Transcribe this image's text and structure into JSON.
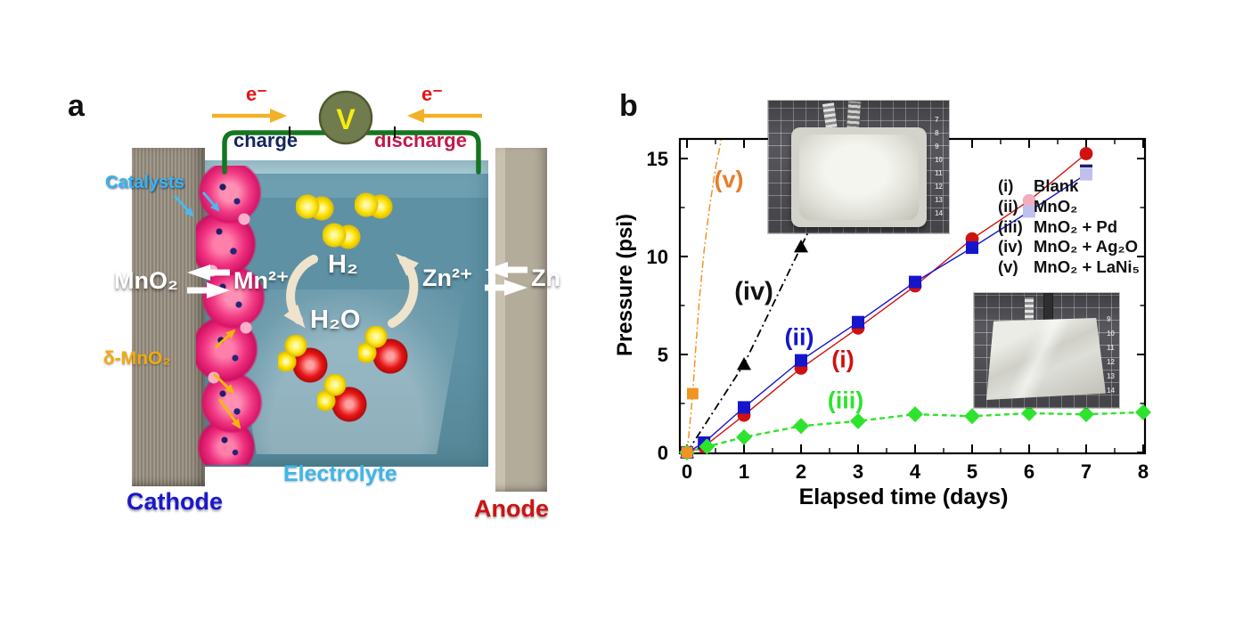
{
  "panel_a": {
    "label": "a",
    "circuit": {
      "electron_left": "e⁻",
      "electron_right": "e⁻",
      "voltmeter": "V",
      "charge": "charge",
      "discharge": "discharge"
    },
    "labels": {
      "catalysts": "Catalysts",
      "cathode_reaction_left": "MnO₂",
      "cathode_reaction_right": "Mn²⁺",
      "anode_reaction_left": "Zn²⁺",
      "anode_reaction_right": "Zn",
      "h2": "H₂",
      "h2o": "H₂O",
      "delta_mno2": "δ-MnO₂",
      "electrolyte": "Electrolyte",
      "cathode": "Cathode",
      "anode": "Anode"
    },
    "colors": {
      "charge_text": "#14265e",
      "discharge_text": "#c2184a",
      "electron_text": "#e11414",
      "wire": "#15761f",
      "voltmeter_body": "#707c4e",
      "voltmeter_v": "#f7ec10",
      "catalysts_text": "#38b6ec",
      "delta_mno2_text": "#f2a90c",
      "electrolyte_text": "#3db7e8",
      "cathode_text": "#1a18cc",
      "anode_text": "#cc1414"
    }
  },
  "panel_b": {
    "label": "b",
    "legend": [
      {
        "num": "(i)",
        "label": "Blank"
      },
      {
        "num": "(ii)",
        "label": "MnO₂"
      },
      {
        "num": "(iii)",
        "label": "MnO₂ + Pd"
      },
      {
        "num": "(iv)",
        "label": "MnO₂ + Ag₂O"
      },
      {
        "num": "(v)",
        "label": "MnO₂ + LaNi₅"
      }
    ],
    "annotations": {
      "v": "(v)",
      "iv": "(iv)",
      "ii": "(ii)",
      "i": "(i)",
      "iii": "(iii)"
    },
    "insets": {
      "swollen_pouch": {
        "ruler_numbers": "7\n8\n9\n10\n11\n12\n13\n14"
      },
      "flat_pouch": {
        "ruler_numbers": "9\n10\n11\n12\n13\n14"
      }
    }
  },
  "chart_data": {
    "type": "line",
    "title": "",
    "xlabel": "Elapsed time (days)",
    "ylabel": "Pressure (psi)",
    "xlim": [
      -0.13,
      8.06
    ],
    "ylim": [
      0,
      16
    ],
    "xticks": [
      0,
      1,
      2,
      3,
      4,
      5,
      6,
      7,
      8
    ],
    "yticks": [
      0,
      5,
      10,
      15
    ],
    "grid": false,
    "legend_position": "upper-right text-only",
    "series": [
      {
        "id": "iv",
        "name": "MnO₂ + Ag₂O",
        "marker": "triangle",
        "color": "#000000",
        "line_style": "dashdot",
        "dash": "9 4 2 4",
        "width": 1.8,
        "msize": 8,
        "points": [
          [
            0,
            0
          ],
          [
            1,
            4.5
          ],
          [
            2,
            10.5
          ]
        ],
        "line_points": [
          [
            0,
            0
          ],
          [
            1,
            4.5
          ],
          [
            2,
            10.5
          ],
          [
            2.32,
            12.4
          ]
        ]
      },
      {
        "id": "i",
        "name": "Blank",
        "marker": "circle",
        "color": "#d01111",
        "faded_color": "#f3adbc",
        "line_style": "solid",
        "dash": "",
        "width": 1.4,
        "msize": 7.4,
        "points": [
          [
            0,
            0
          ],
          [
            0.3,
            0.3
          ],
          [
            1,
            1.9
          ],
          [
            2,
            4.3
          ],
          [
            3,
            6.35
          ],
          [
            4,
            8.5
          ],
          [
            5,
            10.9
          ],
          [
            7,
            15.25
          ]
        ],
        "faded_points": [
          [
            6,
            12.85
          ]
        ]
      },
      {
        "id": "ii",
        "name": "MnO₂",
        "marker": "square",
        "color": "#1515cc",
        "faded_color": "#c0c0ee",
        "line_style": "solid",
        "dash": "",
        "width": 1.4,
        "msize": 7,
        "points": [
          [
            0,
            0
          ],
          [
            0.3,
            0.5
          ],
          [
            1,
            2.3
          ],
          [
            2,
            4.7
          ],
          [
            3,
            6.65
          ],
          [
            4,
            8.7
          ],
          [
            5,
            10.45
          ]
        ],
        "faded_points": [
          [
            6,
            12.3
          ],
          [
            7,
            14.2
          ]
        ]
      },
      {
        "id": "iii",
        "name": "MnO₂ + Pd",
        "marker": "diamond",
        "color": "#2ee32e",
        "line_style": "dashed",
        "dash": "6 4",
        "width": 2.4,
        "msize": 8.5,
        "points": [
          [
            0,
            0
          ],
          [
            0.35,
            0.3
          ],
          [
            1,
            0.78
          ],
          [
            2,
            1.35
          ],
          [
            3,
            1.6
          ],
          [
            4,
            1.95
          ],
          [
            5,
            1.85
          ],
          [
            6,
            2.0
          ],
          [
            7,
            1.95
          ],
          [
            8,
            2.05
          ]
        ]
      },
      {
        "id": "v",
        "name": "MnO₂ + LaNi₅",
        "marker": "square",
        "color": "#f09422",
        "line_style": "dashdot",
        "dash": "8 3 2 3",
        "width": 1.5,
        "msize": 6.4,
        "points": [
          [
            0,
            0
          ],
          [
            0.1,
            3.0
          ]
        ],
        "line_points": [
          [
            0,
            0
          ],
          [
            0.05,
            1.4
          ],
          [
            0.1,
            3.0
          ],
          [
            0.16,
            5.6
          ],
          [
            0.22,
            7.9
          ],
          [
            0.3,
            10.3
          ],
          [
            0.4,
            12.6
          ],
          [
            0.5,
            14.5
          ],
          [
            0.6,
            15.95
          ]
        ]
      }
    ],
    "extras": [
      {
        "type": "dash_marker",
        "x": 7,
        "y": 14.62,
        "color": "#1d1d70",
        "w": 14,
        "h": 3.4
      }
    ]
  }
}
